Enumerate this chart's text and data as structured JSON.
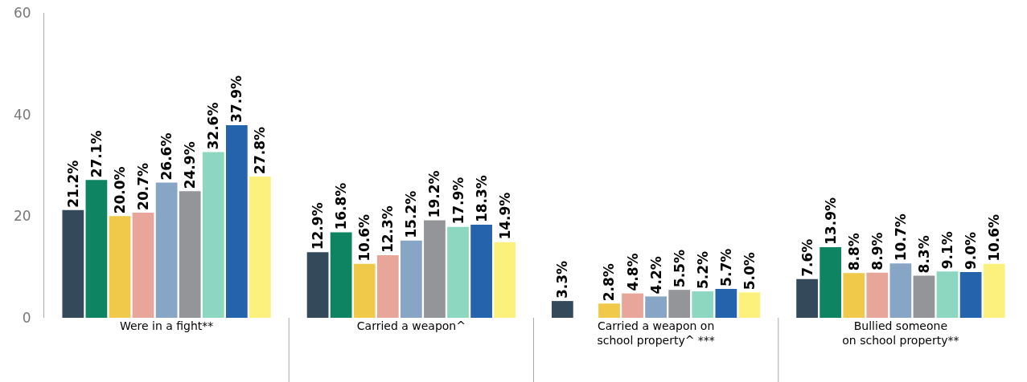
{
  "chart_data": {
    "type": "bar",
    "categories": [
      "Were in a fight**",
      "Carried a weapon^",
      "Carried a weapon on\nschool property^ ***",
      "Bullied someone\non school property**"
    ],
    "ylim": [
      0,
      60
    ],
    "yticks": [
      0,
      20,
      40,
      60
    ],
    "legend": false,
    "series": [
      {
        "color": "#34495a",
        "values": [
          21.2,
          12.9,
          3.3,
          7.6
        ],
        "value_labels": [
          "21.2%",
          "12.9%",
          "3.3%",
          "7.6%"
        ]
      },
      {
        "color": "#0e8462",
        "values": [
          27.1,
          16.8,
          null,
          13.9
        ],
        "value_labels": [
          "27.1%",
          "16.8%",
          null,
          "13.9%"
        ]
      },
      {
        "color": "#f0c84a",
        "values": [
          20.0,
          10.6,
          2.8,
          8.8
        ],
        "value_labels": [
          "20.0%",
          "10.6%",
          "2.8%",
          "8.8%"
        ]
      },
      {
        "color": "#e8a59a",
        "values": [
          20.7,
          12.3,
          4.8,
          8.9
        ],
        "value_labels": [
          "20.7%",
          "12.3%",
          "4.8%",
          "8.9%"
        ]
      },
      {
        "color": "#87a6c6",
        "values": [
          26.6,
          15.2,
          4.2,
          10.7
        ],
        "value_labels": [
          "26.6%",
          "15.2%",
          "4.2%",
          "10.7%"
        ]
      },
      {
        "color": "#939598",
        "values": [
          24.9,
          19.2,
          5.5,
          8.3
        ],
        "value_labels": [
          "24.9%",
          "19.2%",
          "5.5%",
          "8.3%"
        ]
      },
      {
        "color": "#8dd6bf",
        "values": [
          32.6,
          17.9,
          5.2,
          9.1
        ],
        "value_labels": [
          "32.6%",
          "17.9%",
          "5.2%",
          "9.1%"
        ]
      },
      {
        "color": "#2563ad",
        "values": [
          37.9,
          18.3,
          5.7,
          9.0
        ],
        "value_labels": [
          "37.9%",
          "18.3%",
          "5.7%",
          "9.0%"
        ]
      },
      {
        "color": "#fdf17e",
        "values": [
          27.8,
          14.9,
          5.0,
          10.6
        ],
        "value_labels": [
          "27.8%",
          "14.9%",
          "5.0%",
          "10.6%"
        ]
      }
    ]
  }
}
